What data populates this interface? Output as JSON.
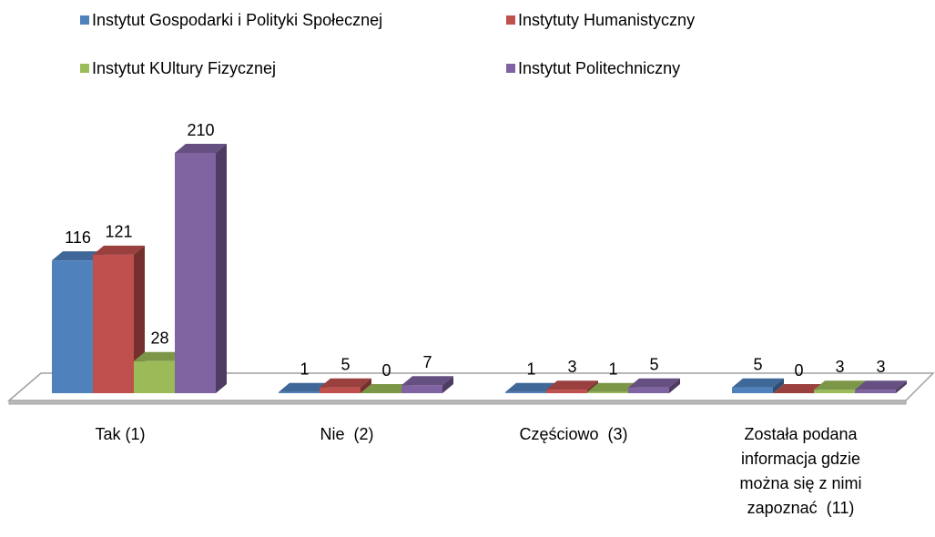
{
  "chart_data": {
    "type": "bar3d",
    "categories": [
      "Tak (1)",
      "Nie  (2)",
      "Częściowo  (3)",
      "Została podana informacja gdzie można się z nimi zapoznać  (11)"
    ],
    "series": [
      {
        "name": "Instytut Gospodarki i Polityki Społecznej",
        "color": "#4f81bd",
        "values": [
          116,
          1,
          1,
          5
        ]
      },
      {
        "name": "Instytuty Humanistyczny",
        "color": "#c0504d",
        "values": [
          121,
          5,
          3,
          0
        ]
      },
      {
        "name": "Instytut KUltury Fizycznej",
        "color": "#9bbb59",
        "values": [
          28,
          0,
          1,
          3
        ]
      },
      {
        "name": "Instytut Politechniczny",
        "color": "#8064a2",
        "values": [
          210,
          7,
          5,
          3
        ]
      }
    ]
  }
}
